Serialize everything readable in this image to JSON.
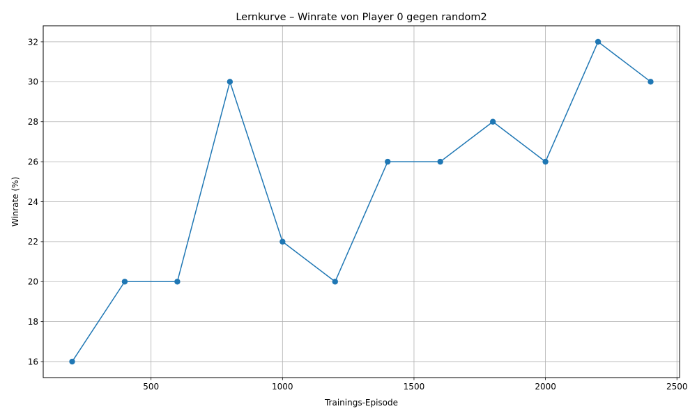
{
  "chart_data": {
    "type": "line",
    "title": "Lernkurve – Winrate von Player 0 gegen random2",
    "xlabel": "Trainings-Episode",
    "ylabel": "Winrate (%)",
    "x": [
      200,
      400,
      600,
      800,
      1000,
      1200,
      1400,
      1600,
      1800,
      2000,
      2200,
      2400
    ],
    "series": [
      {
        "values": [
          16,
          20,
          20,
          30,
          22,
          20,
          26,
          26,
          28,
          26,
          32,
          30
        ],
        "color": "#1f77b4",
        "marker": "circle"
      }
    ],
    "xlim": [
      90,
      2510
    ],
    "ylim": [
      15.2,
      32.8
    ],
    "xticks": [
      500,
      1000,
      1500,
      2000,
      2500
    ],
    "yticks": [
      16,
      18,
      20,
      22,
      24,
      26,
      28,
      30,
      32
    ],
    "grid": true,
    "legend": "none"
  }
}
